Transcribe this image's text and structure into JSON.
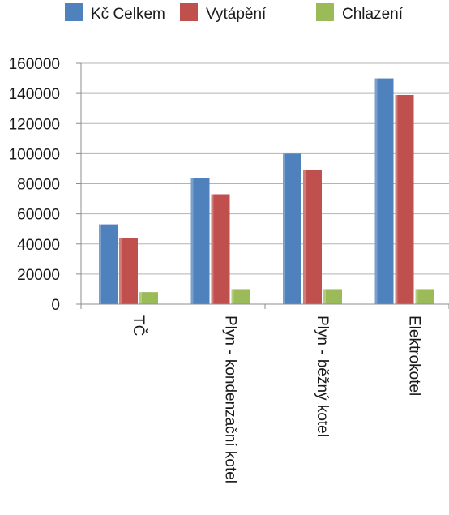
{
  "chart_data": {
    "type": "bar",
    "categories": [
      "TČ",
      "Plyn - kondenzační kotel",
      "Plyn - běžný kotel",
      "Elektrokotel"
    ],
    "series": [
      {
        "name": "Kč Celkem",
        "color": "#4F81BD",
        "values": [
          53000,
          84000,
          100000,
          150000
        ]
      },
      {
        "name": "Vytápění",
        "color": "#C0504D",
        "values": [
          44000,
          73000,
          89000,
          139000
        ]
      },
      {
        "name": "Chlazení",
        "color": "#9BBB59",
        "values": [
          8000,
          10000,
          10000,
          10000
        ]
      }
    ],
    "y_ticks": [
      "0",
      "20000",
      "40000",
      "60000",
      "80000",
      "100000",
      "120000",
      "140000",
      "160000"
    ],
    "ylim": [
      0,
      160000
    ],
    "grid": true,
    "legend_position": "top"
  }
}
